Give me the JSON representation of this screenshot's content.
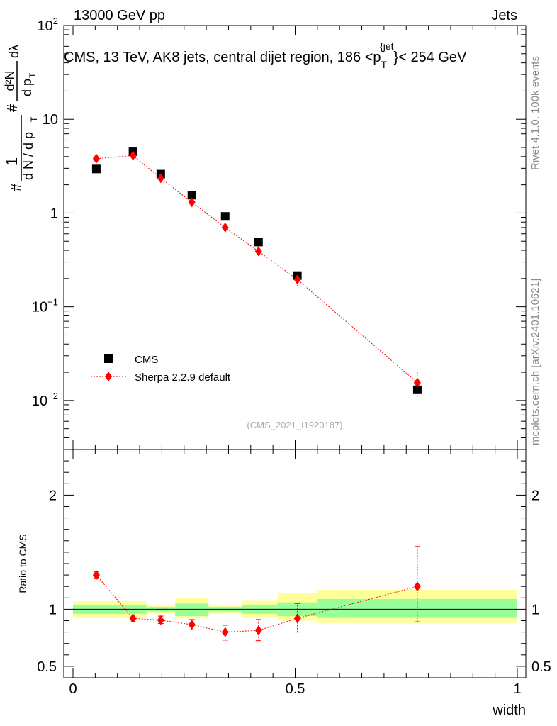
{
  "header": {
    "left": "13000 GeV pp",
    "right": "Jets"
  },
  "side_labels": {
    "rivet": "Rivet 4.1.0,  100k events",
    "mcplots": "mcplots.cern.ch [arXiv:2401.10621]"
  },
  "colors": {
    "data": "#000000",
    "mc": "#ff0000",
    "band_inner": "#99ff99",
    "band_outer": "#ffff99"
  },
  "chart_data": [
    {
      "type": "scatter",
      "panel": "main",
      "title": "CMS, 13 TeV, AK8 jets, central dijet region, 186 <p",
      "title_sub": "T",
      "title_sup": "{jet",
      "title_tail": "}< 254 GeV",
      "ylabel": {
        "hash": "#",
        "one": "1",
        "dN": "d N / d p",
        "dN_sub": "T",
        "num": "d²N",
        "den": "d p",
        "den_sub": "T",
        "dlambda": "dλ"
      },
      "yscale": "log",
      "ylim": [
        0.003,
        100
      ],
      "yticks": [
        {
          "value": 100,
          "base": "10",
          "exp": "2"
        },
        {
          "value": 10,
          "base": "10",
          "exp": ""
        },
        {
          "value": 1,
          "base": "1",
          "exp": ""
        },
        {
          "value": 0.1,
          "base": "10",
          "exp": "−1"
        },
        {
          "value": 0.01,
          "base": "10",
          "exp": "−2"
        }
      ],
      "xlim": [
        0,
        1
      ],
      "watermark": "(CMS_2021_I1920187)",
      "legend": [
        {
          "name": "CMS",
          "marker": "square"
        },
        {
          "name": "Sherpa 2.2.9 default",
          "marker": "diamond"
        }
      ],
      "series": [
        {
          "name": "CMS",
          "x": [
            0.0525,
            0.135,
            0.1975,
            0.2675,
            0.3425,
            0.4175,
            0.505,
            0.775
          ],
          "values": [
            2.95,
            4.5,
            2.6,
            1.55,
            0.92,
            0.49,
            0.215,
            0.013
          ]
        },
        {
          "name": "Sherpa 2.2.9 default",
          "x": [
            0.0525,
            0.135,
            0.1975,
            0.2675,
            0.3425,
            0.4175,
            0.505,
            0.775
          ],
          "values": [
            3.8,
            4.1,
            2.35,
            1.3,
            0.7,
            0.39,
            0.195,
            0.0155
          ],
          "err_lo": [
            3.6,
            3.9,
            2.2,
            1.2,
            0.63,
            0.35,
            0.165,
            0.011
          ],
          "err_hi": [
            4.0,
            4.3,
            2.5,
            1.4,
            0.77,
            0.43,
            0.225,
            0.02
          ]
        }
      ]
    },
    {
      "type": "scatter",
      "panel": "ratio",
      "ylabel": "Ratio to CMS",
      "xlabel": "width",
      "ylim": [
        0.4,
        2.4
      ],
      "yticks": [
        0.5,
        1,
        2
      ],
      "xlim": [
        0,
        1
      ],
      "xticks": [
        0,
        0.5,
        1
      ],
      "xtick_labels": [
        "0",
        "0.5",
        "1"
      ],
      "reference": 1,
      "bands": [
        {
          "x0": 0.0,
          "x1": 0.165,
          "inner": [
            0.96,
            1.04
          ],
          "outer": [
            0.93,
            1.07
          ]
        },
        {
          "x0": 0.165,
          "x1": 0.23,
          "inner": [
            0.98,
            1.02
          ],
          "outer": [
            0.96,
            1.04
          ]
        },
        {
          "x0": 0.23,
          "x1": 0.305,
          "inner": [
            0.94,
            1.05
          ],
          "outer": [
            0.92,
            1.1
          ]
        },
        {
          "x0": 0.305,
          "x1": 0.38,
          "inner": [
            0.98,
            1.02
          ],
          "outer": [
            0.96,
            1.04
          ]
        },
        {
          "x0": 0.38,
          "x1": 0.46,
          "inner": [
            0.96,
            1.04
          ],
          "outer": [
            0.93,
            1.08
          ]
        },
        {
          "x0": 0.46,
          "x1": 0.55,
          "inner": [
            0.94,
            1.06
          ],
          "outer": [
            0.9,
            1.14
          ]
        },
        {
          "x0": 0.55,
          "x1": 1.0,
          "inner": [
            0.93,
            1.09
          ],
          "outer": [
            0.88,
            1.17
          ]
        }
      ],
      "series": [
        {
          "name": "Sherpa 2.2.9 default",
          "x": [
            0.0525,
            0.135,
            0.1975,
            0.2675,
            0.3425,
            0.4175,
            0.505,
            0.775
          ],
          "values": [
            1.3,
            0.92,
            0.905,
            0.865,
            0.8,
            0.815,
            0.92,
            1.2
          ],
          "err_lo": [
            1.27,
            0.89,
            0.875,
            0.82,
            0.73,
            0.725,
            0.8,
            0.89
          ],
          "err_hi": [
            1.33,
            0.95,
            0.94,
            0.91,
            0.86,
            0.91,
            1.05,
            1.55
          ]
        }
      ]
    }
  ]
}
